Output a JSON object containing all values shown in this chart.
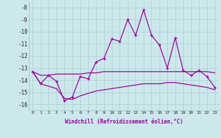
{
  "xlabel": "Windchill (Refroidissement éolien,°C)",
  "x": [
    0,
    1,
    2,
    3,
    4,
    5,
    6,
    7,
    8,
    9,
    10,
    11,
    12,
    13,
    14,
    15,
    16,
    17,
    18,
    19,
    20,
    21,
    22,
    23
  ],
  "windchill": [
    -13.3,
    -14.3,
    -13.6,
    -14.1,
    -15.7,
    -15.4,
    -13.7,
    -13.9,
    -12.5,
    -12.2,
    -10.6,
    -10.8,
    -9.0,
    -10.3,
    -8.2,
    -10.3,
    -11.1,
    -13.0,
    -10.5,
    -13.2,
    -13.6,
    -13.2,
    -13.7,
    -14.6
  ],
  "temp_upper": [
    -13.3,
    -13.6,
    -13.6,
    -13.5,
    -13.5,
    -13.5,
    -13.5,
    -13.4,
    -13.4,
    -13.3,
    -13.3,
    -13.3,
    -13.3,
    -13.3,
    -13.3,
    -13.3,
    -13.3,
    -13.3,
    -13.3,
    -13.3,
    -13.3,
    -13.3,
    -13.3,
    -13.4
  ],
  "temp_lower": [
    -13.3,
    -14.3,
    -14.5,
    -14.7,
    -15.5,
    -15.6,
    -15.3,
    -15.1,
    -14.9,
    -14.8,
    -14.7,
    -14.6,
    -14.5,
    -14.4,
    -14.3,
    -14.3,
    -14.3,
    -14.2,
    -14.2,
    -14.3,
    -14.4,
    -14.5,
    -14.6,
    -14.8
  ],
  "line_color": "#990099",
  "bg_color": "#cce8ec",
  "grid_color": "#aacccc",
  "ylim": [
    -16.5,
    -7.5
  ],
  "yticks": [
    -16,
    -15,
    -14,
    -13,
    -12,
    -11,
    -10,
    -9,
    -8
  ],
  "xticks": [
    0,
    1,
    2,
    3,
    4,
    5,
    6,
    7,
    8,
    9,
    10,
    11,
    12,
    13,
    14,
    15,
    16,
    17,
    18,
    19,
    20,
    21,
    22,
    23
  ]
}
